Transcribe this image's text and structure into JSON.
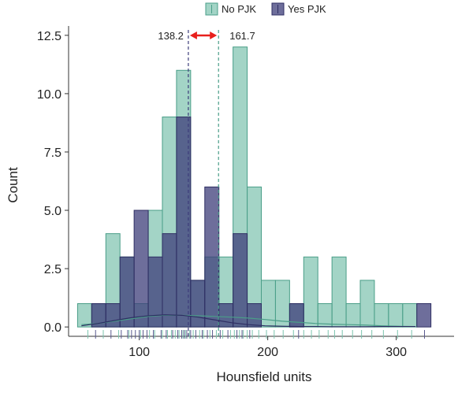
{
  "chart_data": {
    "type": "bar",
    "xlabel": "Hounsfield units",
    "ylabel": "Count",
    "xlim": [
      45,
      345
    ],
    "ylim": [
      -0.4,
      12.9
    ],
    "xticks": [
      100,
      200,
      300
    ],
    "xtick_labels": [
      "100",
      "200",
      "300"
    ],
    "yticks": [
      0,
      2.5,
      5,
      7.5,
      10,
      12.5
    ],
    "ytick_labels": [
      "0.0",
      "2.5",
      "5.0",
      "7.5",
      "10.0",
      "12.5"
    ],
    "bin_width": 11,
    "bin_starts": [
      52,
      63,
      74,
      85,
      96,
      107,
      118,
      129,
      140,
      151,
      162,
      173,
      184,
      195,
      206,
      217,
      228,
      239,
      250,
      261,
      272,
      283,
      294,
      305,
      316
    ],
    "grid": false,
    "legend_position": "top-center",
    "series": [
      {
        "name": "No PJK",
        "color": "#66b8a0",
        "values": [
          1,
          1,
          4,
          3,
          1,
          5,
          9,
          11,
          2,
          3,
          3,
          12,
          6,
          2,
          2,
          1,
          3,
          1,
          3,
          1,
          2,
          1,
          1,
          1,
          0
        ],
        "kde_y": [
          0.1,
          0.15,
          0.25,
          0.35,
          0.45,
          0.5,
          0.5,
          0.48,
          0.45,
          0.42,
          0.38,
          0.32,
          0.25,
          0.2,
          0.15,
          0.12,
          0.1,
          0.08,
          0.05,
          0.03,
          0.02
        ]
      },
      {
        "name": "Yes PJK",
        "color": "#3d3d7a",
        "values": [
          0,
          1,
          1,
          3,
          5,
          3,
          4,
          9,
          2,
          6,
          1,
          4,
          1,
          0,
          0,
          1,
          0,
          0,
          0,
          0,
          0,
          0,
          0,
          0,
          1
        ],
        "kde_y": [
          0.05,
          0.15,
          0.28,
          0.4,
          0.48,
          0.52,
          0.5,
          0.42,
          0.3,
          0.18,
          0.1,
          0.05,
          0.03,
          0.02,
          0.02,
          0.01,
          0.01,
          0.01,
          0.02,
          0.02,
          0.02
        ]
      }
    ],
    "kde_x": [
      55,
      68,
      81,
      94,
      107,
      120,
      133,
      146,
      159,
      172,
      185,
      198,
      211,
      224,
      237,
      250,
      263,
      276,
      289,
      302,
      315
    ],
    "rug": {
      "no_pjk": [
        60,
        72,
        84,
        92,
        101,
        108,
        112,
        118,
        122,
        125,
        128,
        131,
        134,
        136,
        139,
        142,
        147,
        150,
        155,
        160,
        165,
        171,
        174,
        176,
        178,
        181,
        184,
        188,
        193,
        199,
        205,
        212,
        220,
        228,
        234,
        240,
        247,
        252,
        258,
        266,
        273,
        281,
        290,
        301,
        312,
        322
      ],
      "yes_pjk": [
        66,
        78,
        86,
        91,
        94,
        97,
        100,
        103,
        106,
        111,
        117,
        121,
        126,
        130,
        133,
        135,
        137,
        140,
        144,
        149,
        153,
        157,
        163,
        169,
        176,
        180,
        186,
        224,
        322
      ]
    },
    "vlines": [
      {
        "x": 138.2,
        "label": "138.2",
        "color": "#3d3d7a"
      },
      {
        "x": 161.7,
        "label": "161.7",
        "color": "#4a9e88"
      }
    ],
    "difference_arrow": {
      "from": 138.2,
      "to": 161.7,
      "color": "#e8201c"
    }
  }
}
